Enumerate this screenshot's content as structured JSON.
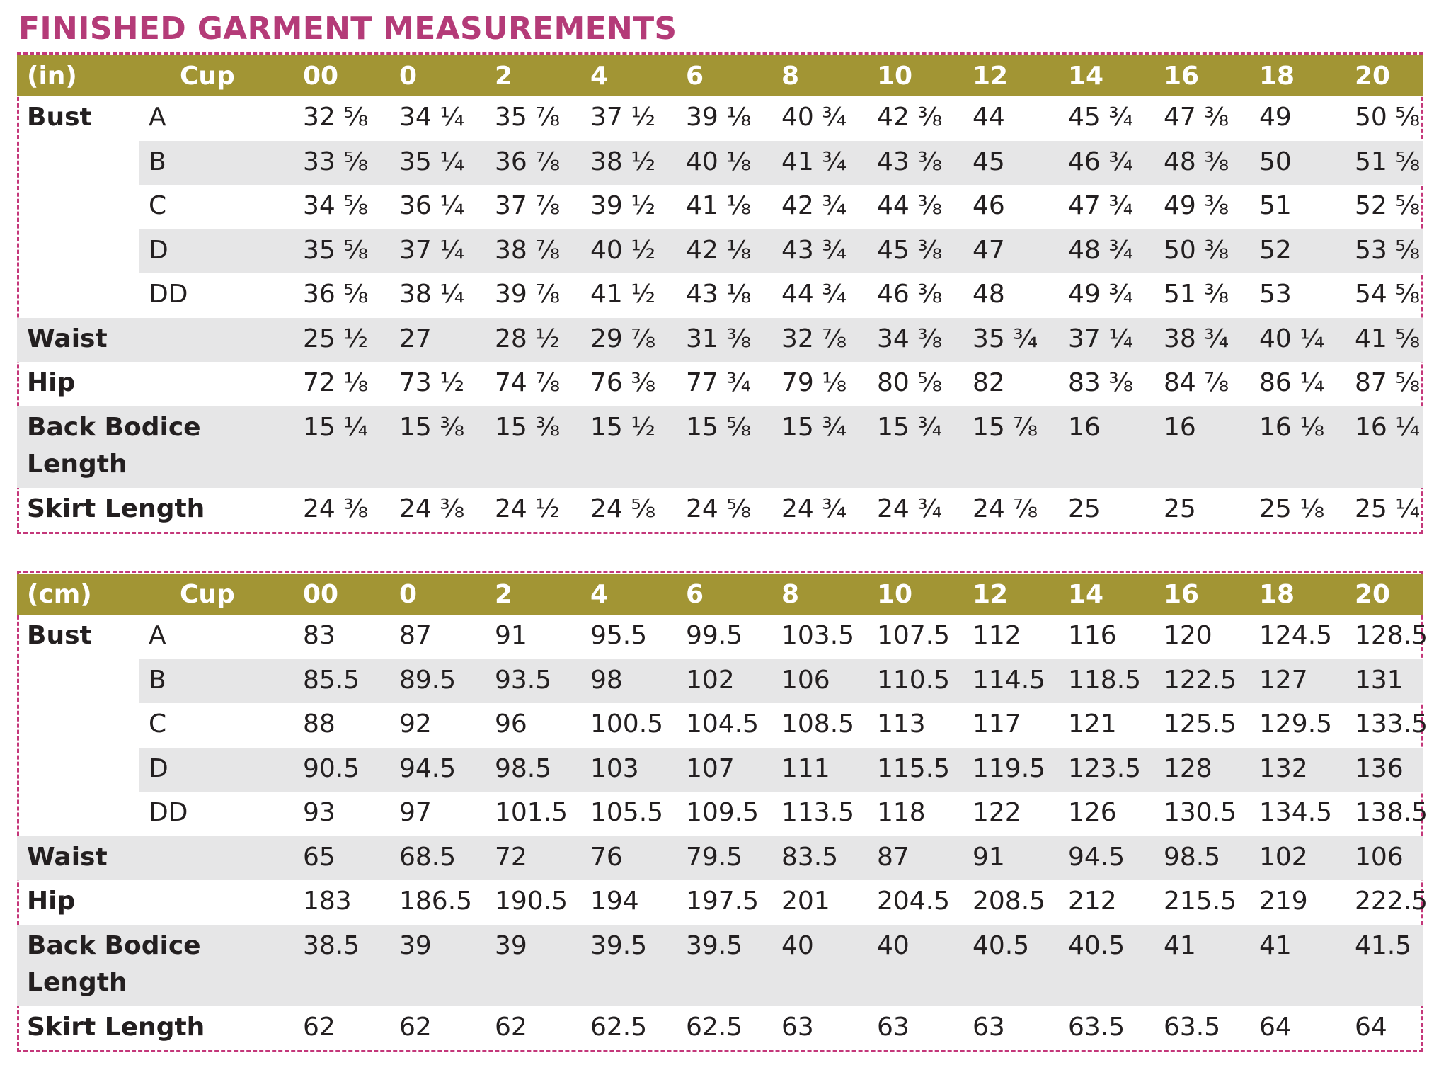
{
  "title": "FINISHED GARMENT MEASUREMENTS",
  "sizes": [
    "00",
    "0",
    "2",
    "4",
    "6",
    "8",
    "10",
    "12",
    "14",
    "16",
    "18",
    "20"
  ],
  "tables": [
    {
      "unit": "(in)",
      "cup_label": "Cup",
      "bust_label": "Bust",
      "bust": [
        {
          "cup": "A",
          "values": [
            "32 ⅝",
            "34 ¼",
            "35 ⅞",
            "37 ½",
            "39 ⅛",
            "40 ¾",
            "42 ⅜",
            "44",
            "45 ¾",
            "47 ⅜",
            "49",
            "50 ⅝"
          ]
        },
        {
          "cup": "B",
          "values": [
            "33 ⅝",
            "35 ¼",
            "36 ⅞",
            "38 ½",
            "40 ⅛",
            "41 ¾",
            "43 ⅜",
            "45",
            "46 ¾",
            "48 ⅜",
            "50",
            "51 ⅝"
          ]
        },
        {
          "cup": "C",
          "values": [
            "34 ⅝",
            "36 ¼",
            "37 ⅞",
            "39 ½",
            "41 ⅛",
            "42 ¾",
            "44 ⅜",
            "46",
            "47 ¾",
            "49 ⅜",
            "51",
            "52 ⅝"
          ]
        },
        {
          "cup": "D",
          "values": [
            "35 ⅝",
            "37 ¼",
            "38 ⅞",
            "40 ½",
            "42 ⅛",
            "43 ¾",
            "45 ⅜",
            "47",
            "48 ¾",
            "50 ⅜",
            "52",
            "53 ⅝"
          ]
        },
        {
          "cup": "DD",
          "values": [
            "36 ⅝",
            "38 ¼",
            "39 ⅞",
            "41 ½",
            "43 ⅛",
            "44 ¾",
            "46 ⅜",
            "48",
            "49 ¾",
            "51 ⅜",
            "53",
            "54 ⅝"
          ]
        }
      ],
      "waist": {
        "label": "Waist",
        "values": [
          "25 ½",
          "27",
          "28 ½",
          "29 ⅞",
          "31 ⅜",
          "32 ⅞",
          "34 ⅜",
          "35 ¾",
          "37 ¼",
          "38 ¾",
          "40 ¼",
          "41 ⅝"
        ]
      },
      "hip": {
        "label": "Hip",
        "values": [
          "72 ⅛",
          "73 ½",
          "74 ⅞",
          "76 ⅜",
          "77 ¾",
          "79 ⅛",
          "80 ⅝",
          "82",
          "83 ⅜",
          "84 ⅞",
          "86 ¼",
          "87 ⅝"
        ]
      },
      "back": {
        "label1": "Back Bodice",
        "label2": "Length",
        "values": [
          "15 ¼",
          "15 ⅜",
          "15 ⅜",
          "15 ½",
          "15 ⅝",
          "15 ¾",
          "15 ¾",
          "15 ⅞",
          "16",
          "16",
          "16 ⅛",
          "16 ¼"
        ]
      },
      "skirt": {
        "label": "Skirt Length",
        "values": [
          "24 ⅜",
          "24 ⅜",
          "24 ½",
          "24 ⅝",
          "24 ⅝",
          "24 ¾",
          "24 ¾",
          "24 ⅞",
          "25",
          "25",
          "25 ⅛",
          "25 ¼"
        ]
      }
    },
    {
      "unit": "(cm)",
      "cup_label": "Cup",
      "bust_label": "Bust",
      "bust": [
        {
          "cup": "A",
          "values": [
            "83",
            "87",
            "91",
            "95.5",
            "99.5",
            "103.5",
            "107.5",
            "112",
            "116",
            "120",
            "124.5",
            "128.5"
          ]
        },
        {
          "cup": "B",
          "values": [
            "85.5",
            "89.5",
            "93.5",
            "98",
            "102",
            "106",
            "110.5",
            "114.5",
            "118.5",
            "122.5",
            "127",
            "131"
          ]
        },
        {
          "cup": "C",
          "values": [
            "88",
            "92",
            "96",
            "100.5",
            "104.5",
            "108.5",
            "113",
            "117",
            "121",
            "125.5",
            "129.5",
            "133.5"
          ]
        },
        {
          "cup": "D",
          "values": [
            "90.5",
            "94.5",
            "98.5",
            "103",
            "107",
            "111",
            "115.5",
            "119.5",
            "123.5",
            "128",
            "132",
            "136"
          ]
        },
        {
          "cup": "DD",
          "values": [
            "93",
            "97",
            "101.5",
            "105.5",
            "109.5",
            "113.5",
            "118",
            "122",
            "126",
            "130.5",
            "134.5",
            "138.5"
          ]
        }
      ],
      "waist": {
        "label": "Waist",
        "values": [
          "65",
          "68.5",
          "72",
          "76",
          "79.5",
          "83.5",
          "87",
          "91",
          "94.5",
          "98.5",
          "102",
          "106"
        ]
      },
      "hip": {
        "label": "Hip",
        "values": [
          "183",
          "186.5",
          "190.5",
          "194",
          "197.5",
          "201",
          "204.5",
          "208.5",
          "212",
          "215.5",
          "219",
          "222.5"
        ]
      },
      "back": {
        "label1": "Back Bodice",
        "label2": "Length",
        "values": [
          "38.5",
          "39",
          "39",
          "39.5",
          "39.5",
          "40",
          "40",
          "40.5",
          "40.5",
          "41",
          "41",
          "41.5"
        ]
      },
      "skirt": {
        "label": "Skirt Length",
        "values": [
          "62",
          "62",
          "62",
          "62.5",
          "62.5",
          "63",
          "63",
          "63",
          "63.5",
          "63.5",
          "64",
          "64"
        ]
      }
    }
  ]
}
